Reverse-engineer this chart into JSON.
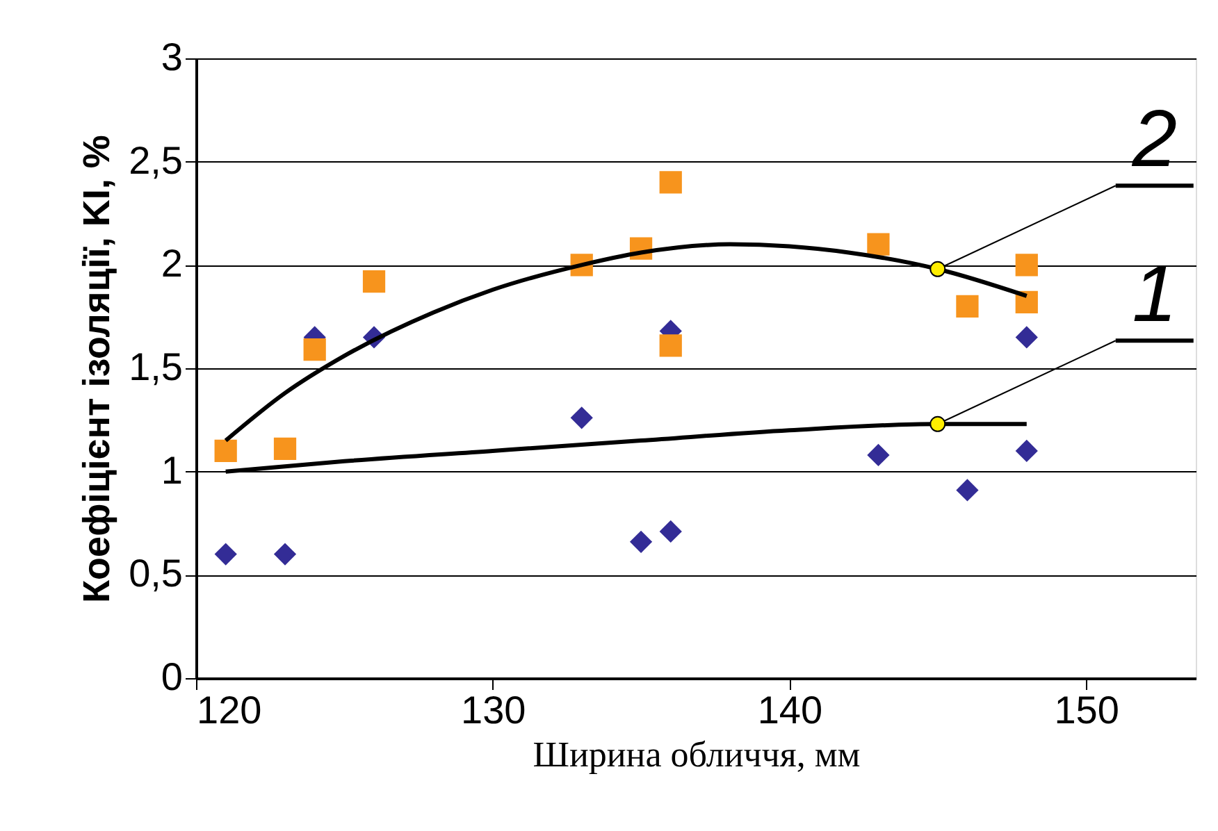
{
  "chart_data": {
    "type": "scatter",
    "xlabel": "Ширина обличчя, мм",
    "ylabel": "Коефіцієнт ізоляції, KI, %",
    "xlim": [
      120,
      153.7
    ],
    "xticks": [
      120,
      130,
      140,
      150
    ],
    "ylim": [
      0,
      3
    ],
    "yticks": [
      0,
      {
        "value": 0.5,
        "label": "0,5"
      },
      1,
      {
        "value": 1.5,
        "label": "1,5"
      },
      2,
      {
        "value": 2.5,
        "label": "2,5"
      },
      3
    ],
    "grid": "y",
    "series": [
      {
        "marker": "diamond",
        "color": "#332c96",
        "x": [
          121,
          123,
          124,
          126,
          133,
          135,
          136,
          136,
          143,
          146,
          148,
          148
        ],
        "values": [
          0.6,
          0.6,
          1.65,
          1.65,
          1.26,
          0.66,
          1.68,
          0.71,
          1.08,
          0.91,
          1.65,
          1.1
        ]
      },
      {
        "marker": "square",
        "color": "#f7941d",
        "x": [
          121,
          123,
          124,
          126,
          133,
          135,
          136,
          136,
          143,
          146,
          148,
          148
        ],
        "values": [
          1.1,
          1.11,
          1.59,
          1.92,
          2.0,
          2.08,
          2.4,
          1.61,
          2.1,
          1.8,
          2.0,
          1.82
        ]
      },
      {
        "type": "line",
        "marker": "none",
        "color": "#000000",
        "x": [
          121,
          125,
          130,
          135,
          140,
          145,
          148
        ],
        "values": [
          1.0,
          1.05,
          1.1,
          1.15,
          1.2,
          1.23,
          1.23
        ]
      },
      {
        "type": "line",
        "marker": "none",
        "color": "#000000",
        "x": [
          121,
          123,
          125,
          128,
          130,
          133,
          135,
          138,
          140,
          142,
          145,
          148
        ],
        "values": [
          1.15,
          1.38,
          1.56,
          1.77,
          1.88,
          2.0,
          2.06,
          2.1,
          2.09,
          2.06,
          1.98,
          1.85
        ]
      }
    ],
    "annotations": [
      {
        "text": "2",
        "x": 145,
        "y": 1.98
      },
      {
        "text": "1",
        "x": 145,
        "y": 1.23
      }
    ]
  }
}
